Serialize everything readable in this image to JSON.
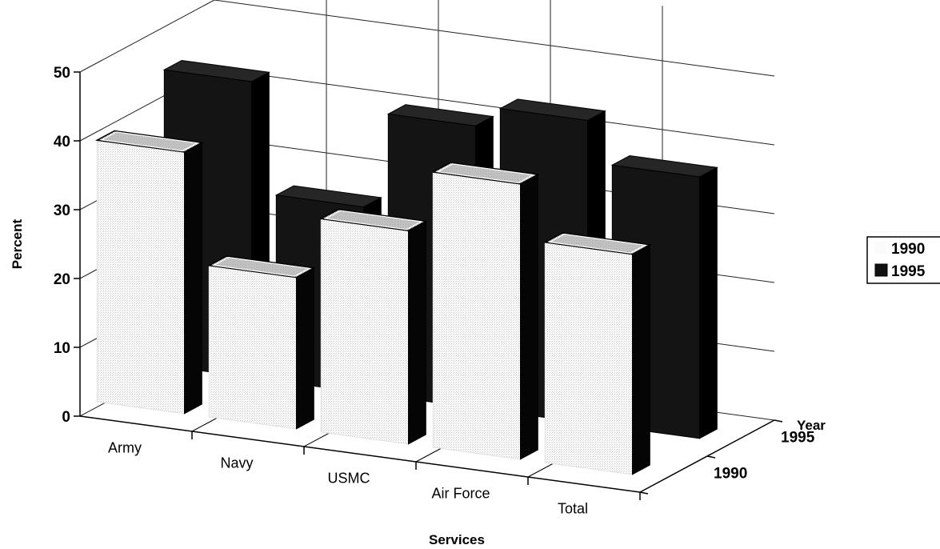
{
  "chart_data": {
    "type": "bar",
    "categories": [
      "Army",
      "Navy",
      "USMC",
      "Air Force",
      "Total"
    ],
    "series": [
      {
        "name": "1990",
        "values": [
          38,
          22,
          31,
          40,
          32
        ]
      },
      {
        "name": "1995",
        "values": [
          43,
          27,
          41,
          44,
          38
        ]
      }
    ],
    "xlabel": "Services",
    "ylabel": "Percent",
    "zlabel": "Year",
    "ylim": [
      0,
      50
    ],
    "yticks": [
      0,
      10,
      20,
      30,
      40,
      50
    ],
    "legend": {
      "position": "right",
      "entries": [
        "1990",
        "1995"
      ]
    },
    "grid": true,
    "colors": {
      "1990": "#f4f4f4",
      "1995": "#111111"
    }
  }
}
